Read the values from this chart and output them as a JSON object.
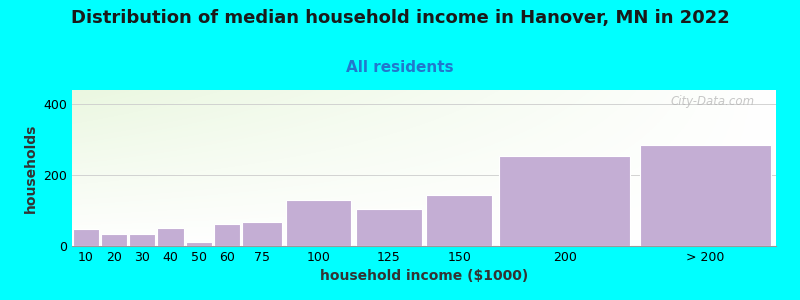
{
  "title": "Distribution of median household income in Hanover, MN in 2022",
  "subtitle": "All residents",
  "xlabel": "household income ($1000)",
  "ylabel": "households",
  "background_color": "#00FFFF",
  "bar_color": "#c4aed4",
  "bar_edge_color": "#ffffff",
  "categories": [
    "10",
    "20",
    "30",
    "40",
    "50",
    "60",
    "75",
    "100",
    "125",
    "150",
    "200",
    "> 200"
  ],
  "values": [
    47,
    33,
    35,
    50,
    10,
    62,
    68,
    130,
    105,
    145,
    255,
    285
  ],
  "bar_lefts": [
    0,
    10,
    20,
    30,
    40,
    50,
    60,
    75,
    100,
    125,
    150,
    200
  ],
  "bar_widths": [
    10,
    10,
    10,
    10,
    10,
    10,
    15,
    25,
    25,
    25,
    50,
    50
  ],
  "ylim": [
    0,
    440
  ],
  "yticks": [
    0,
    200,
    400
  ],
  "title_fontsize": 13,
  "subtitle_fontsize": 11,
  "axis_label_fontsize": 10,
  "tick_fontsize": 9,
  "watermark_text": "City-Data.com"
}
